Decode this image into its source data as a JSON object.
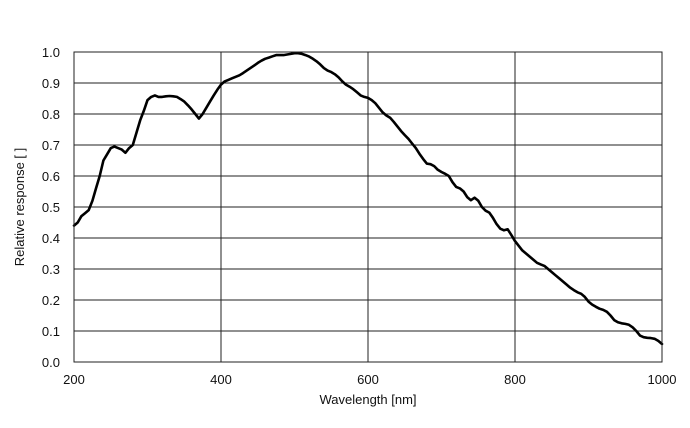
{
  "chart_data": {
    "type": "line",
    "title": "",
    "xlabel": "Wavelength [nm]",
    "ylabel": "Relative response [ ]",
    "xlim": [
      200,
      1000
    ],
    "ylim": [
      0.0,
      1.0
    ],
    "x_ticks": [
      200,
      400,
      600,
      800,
      1000
    ],
    "x_tick_labels": [
      "200",
      "400",
      "600",
      "800",
      "1000"
    ],
    "y_ticks": [
      0.0,
      0.1,
      0.2,
      0.3,
      0.4,
      0.5,
      0.6,
      0.7,
      0.8,
      0.9,
      1.0
    ],
    "y_tick_labels": [
      "0.0",
      "0.1",
      "0.2",
      "0.3",
      "0.4",
      "0.5",
      "0.6",
      "0.7",
      "0.8",
      "0.9",
      "1.0"
    ],
    "grid": true,
    "legend": "none",
    "series": [
      {
        "color": "#000000",
        "x": [
          200,
          205,
          210,
          215,
          220,
          225,
          230,
          235,
          240,
          245,
          250,
          255,
          260,
          265,
          270,
          275,
          280,
          285,
          290,
          295,
          300,
          305,
          310,
          315,
          320,
          325,
          330,
          335,
          340,
          345,
          350,
          355,
          360,
          365,
          370,
          375,
          380,
          385,
          390,
          395,
          400,
          405,
          410,
          415,
          420,
          425,
          430,
          435,
          440,
          445,
          450,
          455,
          460,
          465,
          470,
          475,
          480,
          485,
          490,
          495,
          500,
          505,
          510,
          515,
          520,
          525,
          530,
          535,
          540,
          545,
          550,
          555,
          560,
          565,
          570,
          575,
          580,
          585,
          590,
          595,
          600,
          605,
          610,
          615,
          620,
          625,
          630,
          635,
          640,
          645,
          650,
          655,
          660,
          665,
          670,
          675,
          680,
          685,
          690,
          695,
          700,
          705,
          710,
          715,
          720,
          725,
          730,
          735,
          740,
          745,
          750,
          755,
          760,
          765,
          770,
          775,
          780,
          785,
          790,
          795,
          800,
          805,
          810,
          815,
          820,
          825,
          830,
          835,
          840,
          845,
          850,
          855,
          860,
          865,
          870,
          875,
          880,
          885,
          890,
          895,
          900,
          905,
          910,
          915,
          920,
          925,
          930,
          935,
          940,
          945,
          950,
          955,
          960,
          965,
          970,
          975,
          980,
          985,
          990,
          995,
          1000
        ],
        "y": [
          0.44,
          0.45,
          0.47,
          0.48,
          0.49,
          0.52,
          0.56,
          0.6,
          0.65,
          0.67,
          0.69,
          0.695,
          0.69,
          0.685,
          0.675,
          0.69,
          0.7,
          0.74,
          0.78,
          0.81,
          0.845,
          0.855,
          0.86,
          0.855,
          0.855,
          0.857,
          0.858,
          0.857,
          0.855,
          0.848,
          0.84,
          0.828,
          0.815,
          0.8,
          0.785,
          0.8,
          0.82,
          0.84,
          0.86,
          0.878,
          0.895,
          0.905,
          0.91,
          0.915,
          0.92,
          0.925,
          0.932,
          0.94,
          0.948,
          0.956,
          0.965,
          0.972,
          0.978,
          0.982,
          0.986,
          0.99,
          0.99,
          0.99,
          0.992,
          0.994,
          0.996,
          0.996,
          0.994,
          0.99,
          0.985,
          0.978,
          0.97,
          0.96,
          0.948,
          0.94,
          0.935,
          0.928,
          0.918,
          0.905,
          0.895,
          0.888,
          0.88,
          0.87,
          0.86,
          0.855,
          0.852,
          0.845,
          0.835,
          0.82,
          0.805,
          0.795,
          0.788,
          0.775,
          0.76,
          0.745,
          0.732,
          0.72,
          0.705,
          0.69,
          0.672,
          0.655,
          0.64,
          0.638,
          0.632,
          0.62,
          0.613,
          0.607,
          0.6,
          0.58,
          0.565,
          0.56,
          0.55,
          0.532,
          0.522,
          0.53,
          0.52,
          0.5,
          0.488,
          0.482,
          0.465,
          0.445,
          0.43,
          0.425,
          0.428,
          0.41,
          0.39,
          0.375,
          0.36,
          0.35,
          0.34,
          0.33,
          0.32,
          0.315,
          0.31,
          0.3,
          0.29,
          0.28,
          0.27,
          0.26,
          0.25,
          0.24,
          0.232,
          0.225,
          0.22,
          0.21,
          0.195,
          0.185,
          0.178,
          0.172,
          0.168,
          0.162,
          0.15,
          0.135,
          0.128,
          0.125,
          0.123,
          0.12,
          0.112,
          0.1,
          0.085,
          0.08,
          0.078,
          0.077,
          0.075,
          0.068,
          0.058
        ]
      }
    ]
  }
}
